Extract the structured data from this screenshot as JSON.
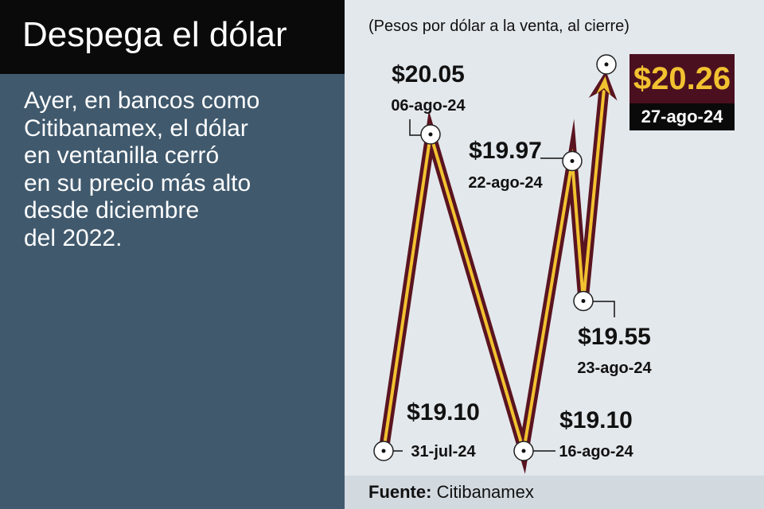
{
  "title": "Despega el dólar",
  "description": "Ayer, en bancos como\nCitibanamex, el dólar\nen ventanilla cerró\nen su precio más alto\ndesde diciembre\ndel 2022.",
  "subtitle": "(Pesos por dólar a la venta, al cierre)",
  "source": {
    "label": "Fuente:",
    "name": "Citibanamex"
  },
  "colors": {
    "panel": "#40596d",
    "title_bar": "#0a0a0a",
    "chart_bg": "#e3e8ec",
    "line_outer": "#5a1420",
    "line_inner": "#f2c230",
    "highlight_bg": "#4a1020",
    "highlight_text": "#f2c230"
  },
  "chart_data": {
    "type": "line",
    "title": "Despega el dólar",
    "ylabel": "(Pesos por dólar a la venta, al cierre)",
    "x": [
      "31-jul-24",
      "06-ago-24",
      "16-ago-24",
      "22-ago-24",
      "23-ago-24",
      "27-ago-24"
    ],
    "y": [
      19.1,
      20.05,
      19.1,
      19.97,
      19.55,
      20.26
    ],
    "ylim": [
      19.05,
      20.3
    ],
    "labels": [
      {
        "value": "$19.10",
        "date": "31-jul-24"
      },
      {
        "value": "$20.05",
        "date": "06-ago-24"
      },
      {
        "value": "$19.10",
        "date": "16-ago-24"
      },
      {
        "value": "$19.97",
        "date": "22-ago-24"
      },
      {
        "value": "$19.55",
        "date": "23-ago-24"
      },
      {
        "value": "$20.26",
        "date": "27-ago-24"
      }
    ],
    "highlight": {
      "value": "$20.26",
      "date": "27-ago-24"
    },
    "grid": false,
    "legend": "none"
  }
}
